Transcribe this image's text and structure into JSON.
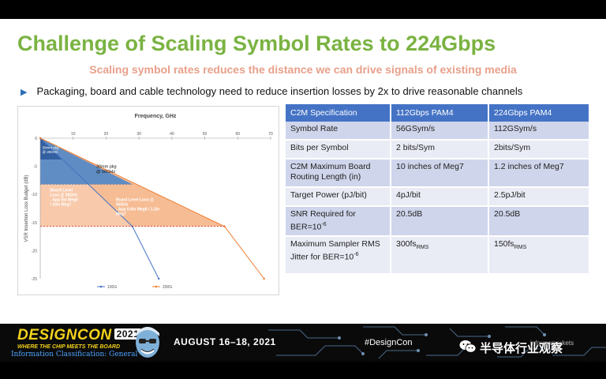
{
  "slide": {
    "title": "Challenge of Scaling Symbol Rates to 224Gbps",
    "subtitle": "Scaling symbol rates reduces the distance we can drive signals of existing media",
    "bullet": "Packaging, board and cable technology need to reduce insertion losses by 2x to drive reasonable channels"
  },
  "chart_data": {
    "type": "line",
    "title": "Frequency, GHz",
    "xlabel": "Frequency, GHz",
    "ylabel": "VSR Insertion Loss Budget (dB)",
    "xlim": [
      0,
      70
    ],
    "ylim": [
      -25,
      0
    ],
    "x_ticks": [
      "10",
      "20",
      "30",
      "40",
      "50",
      "60",
      "70"
    ],
    "y_ticks": [
      "0",
      "-5",
      "-10",
      "-15",
      "-20",
      "-25"
    ],
    "series": [
      {
        "name": "100G",
        "color": "#4472c4",
        "points": [
          [
            0,
            0
          ],
          [
            28,
            -15.7
          ],
          [
            36,
            -25
          ]
        ]
      },
      {
        "name": "200G",
        "color": "#ed7d31",
        "points": [
          [
            0,
            0
          ],
          [
            56,
            -15.7
          ],
          [
            68,
            -25
          ]
        ]
      }
    ],
    "annotations": [
      {
        "text": "30mm pkg @ 28GHz",
        "lines": [
          "30mm pkg",
          "@ 28GHz"
        ]
      },
      {
        "text": "30mm pkg @ 56GHz",
        "lines": [
          "30mm pkg",
          "@ 56GHz"
        ]
      },
      {
        "text": "Board Level Loss @ 28GHz - App 5in Meg6 / 10in Meg7",
        "lines": [
          "Board Level",
          "Loss @ 28GHz",
          "- App 5in Meg6",
          "/ 10in Meg7"
        ]
      },
      {
        "text": "Board Level Loss @ 56GHz - App 0.6in Meg6 / 1.2in Meg7",
        "lines": [
          "Board Level Loss @",
          "56GHz",
          "- App 0.6in Meg6 / 1.2in",
          "Meg7"
        ]
      }
    ],
    "legend": [
      "100G",
      "200G"
    ],
    "legend_position": "bottom",
    "grid": false
  },
  "table": {
    "headers": [
      "C2M Specification",
      "112Gbps PAM4",
      "224Gbps PAM4"
    ],
    "rows": [
      {
        "spec": "Symbol Rate",
        "v112": "56GSym/s",
        "v224": "112GSym/s"
      },
      {
        "spec": "Bits per Symbol",
        "v112": "2 bits/Sym",
        "v224": "2bits/Sym"
      },
      {
        "spec": "C2M Maximum Board Routing Length (in)",
        "v112": "10 inches of Meg7",
        "v224": "1.2 inches of Meg7"
      },
      {
        "spec": "Target Power (pJ/bit)",
        "v112": "4pJ/bit",
        "v224": "2.5pJ/bit"
      },
      {
        "spec": "SNR Required for BER=10",
        "spec_sup": "-6",
        "v112": "20.5dB",
        "v224": "20.5dB"
      },
      {
        "spec": "Maximum Sampler RMS Jitter for BER=10",
        "spec_sup": "-6",
        "v112": "300fs",
        "v112_sub": "RMS",
        "v224": "150fs",
        "v224_sub": "RMS"
      }
    ]
  },
  "footer": {
    "logo": "DESIGNCON",
    "year": "2021",
    "tagline": "WHERE THE CHIP MEETS THE BOARD",
    "classification": "Information Classification: General",
    "dates": "AUGUST 16–18, 2021",
    "hashtag": "#DesignCon",
    "informa": "informamarkets"
  },
  "watermark": {
    "name": "半导体行业观察",
    "icon": "wechat-icon"
  },
  "colors": {
    "title": "#7bb342",
    "subtitle": "#e8a08a",
    "table_header": "#4472c4",
    "row_dark": "#cfd5ea",
    "row_light": "#e9ebf5",
    "loss_blue": "#4f86c6",
    "loss_orange": "#f4b183",
    "logo_yellow": "#f2d21b"
  }
}
